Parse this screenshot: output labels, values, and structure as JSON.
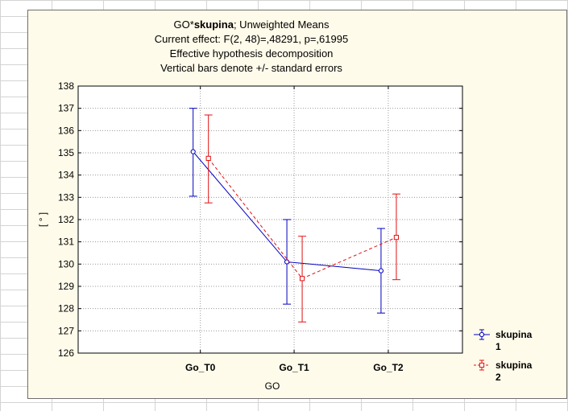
{
  "chart_data": {
    "type": "line",
    "title_lines": [
      {
        "prefix": "GO*",
        "bold": "skupina",
        "suffix": "; Unweighted Means"
      },
      {
        "text": "Current effect: F(2, 48)=,48291, p=,61995"
      },
      {
        "text": "Effective hypothesis decomposition"
      },
      {
        "text": "Vertical bars denote +/- standard errors"
      }
    ],
    "xlabel": "GO",
    "ylabel": "[ ° ]",
    "categories": [
      "Go_T0",
      "Go_T1",
      "Go_T2"
    ],
    "ylim": [
      126,
      138
    ],
    "yticks": [
      "126",
      "127",
      "128",
      "129",
      "130",
      "131",
      "132",
      "133",
      "134",
      "135",
      "136",
      "137",
      "138"
    ],
    "grid": true,
    "legend_position": "right",
    "series": [
      {
        "name": [
          "skupina",
          "1"
        ],
        "color": "#0000c0",
        "marker": "circle",
        "line_style": "solid",
        "values": [
          135.05,
          130.1,
          129.7
        ],
        "lower": [
          133.05,
          128.2,
          127.8
        ],
        "upper": [
          137.0,
          132.0,
          131.6
        ]
      },
      {
        "name": [
          "skupina",
          "2"
        ],
        "color": "#e01010",
        "marker": "square",
        "line_style": "dashed",
        "values": [
          134.75,
          129.35,
          131.2
        ],
        "lower": [
          132.75,
          127.4,
          129.3
        ],
        "upper": [
          136.7,
          131.25,
          133.15
        ]
      }
    ]
  }
}
